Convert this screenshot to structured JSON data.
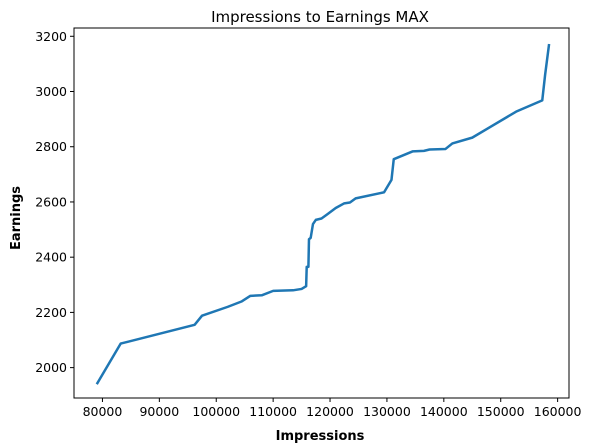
{
  "chart_data": {
    "type": "line",
    "title": "Impressions to Earnings MAX",
    "xlabel": "Impressions",
    "ylabel": "Earnings",
    "xlim": [
      75000,
      162000
    ],
    "ylim": [
      1890,
      3230
    ],
    "xticks": [
      80000,
      90000,
      100000,
      110000,
      120000,
      130000,
      140000,
      150000,
      160000
    ],
    "yticks": [
      2000,
      2200,
      2400,
      2600,
      2800,
      3000,
      3200
    ],
    "grid": false,
    "series": [
      {
        "color": "#1f77b4",
        "x": [
          79000,
          83200,
          96200,
          97500,
          102000,
          104500,
          106000,
          108000,
          110000,
          113500,
          115000,
          115800,
          115900,
          116200,
          116300,
          116600,
          117000,
          117500,
          118500,
          119500,
          121000,
          122500,
          123500,
          124500,
          129500,
          130800,
          131200,
          134500,
          136500,
          137500,
          140300,
          141500,
          145000,
          152700,
          157300,
          157800,
          158500
        ],
        "y": [
          1940,
          2087,
          2155,
          2188,
          2220,
          2240,
          2260,
          2262,
          2278,
          2280,
          2285,
          2295,
          2365,
          2365,
          2465,
          2470,
          2520,
          2535,
          2540,
          2555,
          2578,
          2595,
          2598,
          2613,
          2635,
          2680,
          2755,
          2783,
          2785,
          2790,
          2792,
          2812,
          2833,
          2927,
          2968,
          3060,
          3172
        ]
      }
    ]
  }
}
